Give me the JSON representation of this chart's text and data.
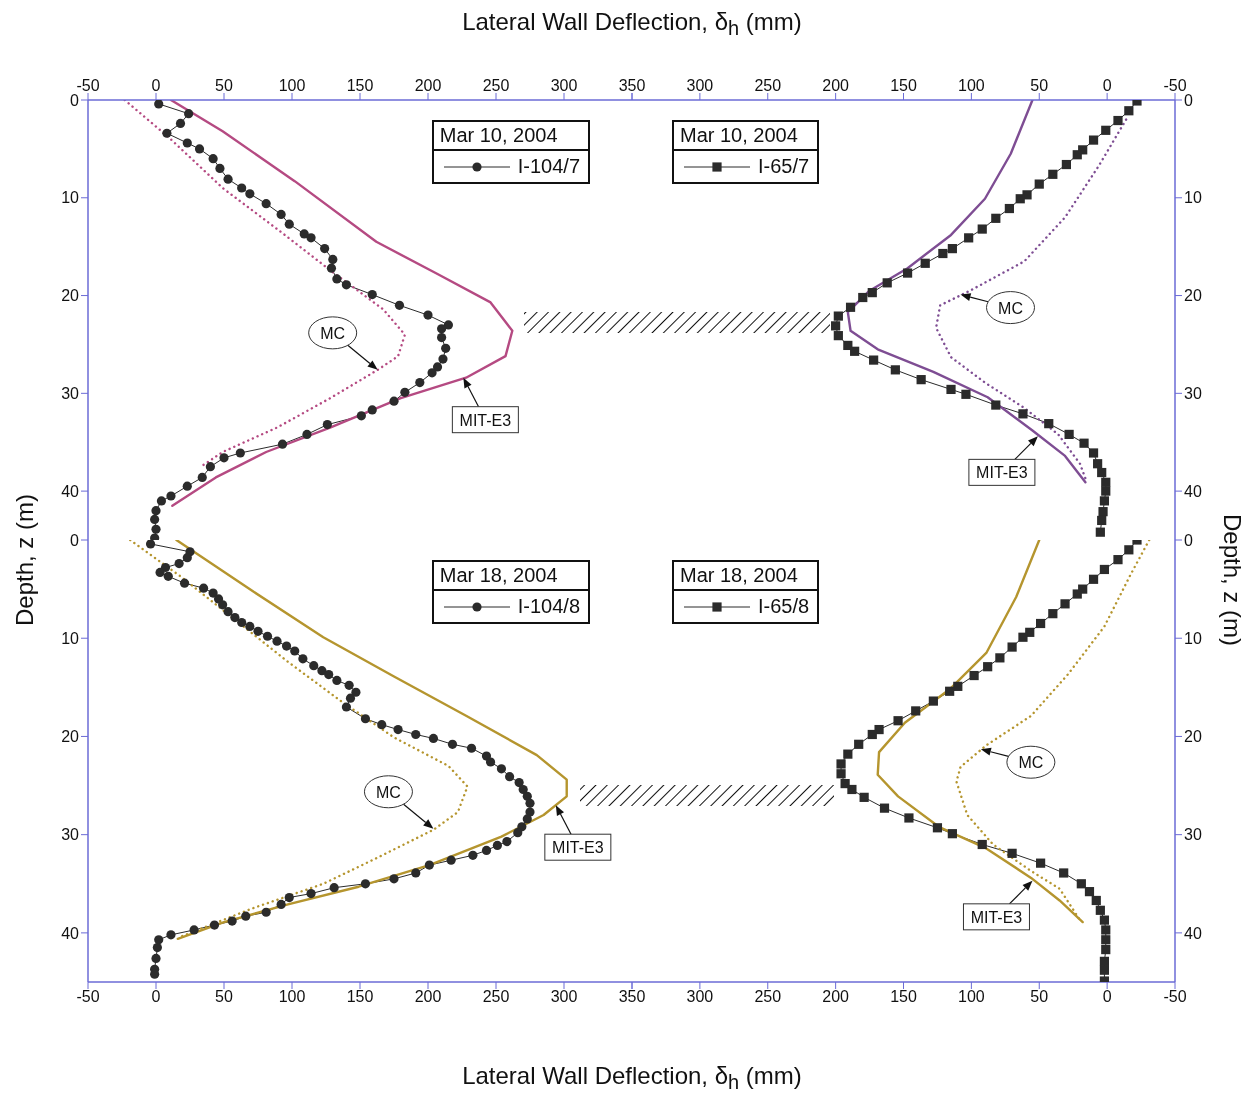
{
  "chart_data": [
    {
      "type": "line",
      "xlabel": "Lateral Wall Deflection, δ$_{h}$ (mm)",
      "ylabel": "Depth, z (m)",
      "legend_title": "Mar 10, 2004",
      "legend": "top right",
      "xlim": [
        -50,
        350
      ],
      "xticks": [
        -50,
        0,
        50,
        100,
        150,
        200,
        250,
        300,
        350
      ],
      "ylim": [
        45,
        0
      ],
      "yticks": [
        0,
        10,
        20,
        30,
        40
      ],
      "series": [
        {
          "name": "I-104/7",
          "color": "#2b2b2b",
          "marker": "circle",
          "line_style": "solid",
          "x": [
            2,
            24,
            18,
            8,
            23,
            32,
            42,
            47,
            53,
            63,
            69,
            81,
            92,
            98,
            109,
            114,
            124,
            130,
            129,
            133,
            140,
            159,
            179,
            200,
            215,
            210,
            210,
            213,
            211,
            207,
            203,
            194,
            183,
            175,
            159,
            151,
            126,
            111,
            93,
            62,
            50,
            40,
            34,
            23,
            11,
            4,
            0,
            -1,
            0,
            -1
          ],
          "values": [
            0.4,
            1.4,
            2.4,
            3.4,
            4.4,
            5,
            6,
            7,
            8.1,
            9,
            9.6,
            10.6,
            11.7,
            12.7,
            13.7,
            14.1,
            15.2,
            16.3,
            17.2,
            18.3,
            18.9,
            19.9,
            21,
            22,
            23,
            23.4,
            24.3,
            25.4,
            26.5,
            27.3,
            27.9,
            28.9,
            29.9,
            30.8,
            31.7,
            32.3,
            33.2,
            34.2,
            35.2,
            36.1,
            36.6,
            37.5,
            38.6,
            39.5,
            40.5,
            41,
            42,
            42.9,
            43.9,
            44.8
          ]
        },
        {
          "color": "#b54a82",
          "marker": "none",
          "line_style": "solid",
          "x": [
            11,
            49,
            102,
            162,
            207,
            246,
            262,
            257,
            228,
            180,
            128,
            81,
            44,
            12
          ],
          "values": [
            0,
            3.2,
            8.3,
            14.5,
            17.8,
            20.7,
            23.6,
            26.2,
            28.4,
            30.5,
            33.5,
            36,
            38.6,
            41.5
          ]
        },
        {
          "color": "#b54a82",
          "marker": "none",
          "line_style": "dotted",
          "x": [
            -23,
            10,
            49,
            91,
            128,
            167,
            183,
            178,
            163,
            128,
            89,
            49,
            33
          ],
          "values": [
            0,
            3.9,
            9,
            13.4,
            17.4,
            21.4,
            24,
            26.2,
            27.6,
            30.5,
            33.5,
            36,
            37.5
          ]
        }
      ],
      "annotations": [
        {
          "text": "MC",
          "x": 163,
          "y": 27.6
        },
        {
          "text": "MIT-E3",
          "x": 226,
          "y": 28.4
        }
      ]
    },
    {
      "type": "line",
      "ylabel": "Depth, z (m)",
      "legend_title": "Mar 10, 2004",
      "legend": "top left",
      "xlim": [
        350,
        -50
      ],
      "xticks": [
        {
          "value": 350,
          "label": null
        },
        300,
        250,
        200,
        150,
        100,
        50,
        0,
        -50
      ],
      "ylim": [
        45,
        0
      ],
      "yticks": [
        0,
        10,
        20,
        30,
        40
      ],
      "series": [
        {
          "name": "I-65/7",
          "color": "#2b2b2b",
          "marker": "square",
          "line_style": "solid",
          "x": [
            -22,
            -16,
            -8,
            1,
            10,
            18,
            22,
            30,
            40,
            50,
            59,
            64,
            72,
            82,
            92,
            102,
            114,
            121,
            134,
            147,
            162,
            173,
            180,
            189,
            198,
            200,
            198,
            191,
            186,
            172,
            156,
            137,
            115,
            104,
            82,
            62,
            43,
            28,
            17,
            10,
            7,
            4,
            1,
            1,
            2,
            3,
            4,
            5
          ],
          "values": [
            0.1,
            1.1,
            2.1,
            3.1,
            4.1,
            5.1,
            5.6,
            6.6,
            7.6,
            8.6,
            9.7,
            10.1,
            11.1,
            12.1,
            13.2,
            14.1,
            15.2,
            15.7,
            16.7,
            17.7,
            18.7,
            19.7,
            20.2,
            21.2,
            22.1,
            23.1,
            24.1,
            25.1,
            25.7,
            26.6,
            27.6,
            28.6,
            29.6,
            30.1,
            31.2,
            32.1,
            33.1,
            34.2,
            35.1,
            36.1,
            37.2,
            38.1,
            39.1,
            40,
            41,
            42.1,
            43,
            44.2
          ]
        },
        {
          "color": "#7e4d93",
          "marker": "none",
          "line_style": "solid",
          "x": [
            55,
            71,
            90,
            115,
            147,
            175,
            191,
            189,
            169,
            128,
            88,
            55,
            31,
            16
          ],
          "values": [
            0,
            5.5,
            10.1,
            13.8,
            17.2,
            19.5,
            21.7,
            23.6,
            25.5,
            27.8,
            30.4,
            33.8,
            36.4,
            39.1
          ]
        },
        {
          "color": "#7e4d93",
          "marker": "none",
          "line_style": "dotted",
          "x": [
            -14,
            6,
            31,
            61,
            101,
            123,
            126,
            115,
            90,
            61,
            36,
            20,
            16
          ],
          "values": [
            2,
            6.7,
            12,
            16.5,
            19.5,
            21,
            23.3,
            26.3,
            28.9,
            31.5,
            34.2,
            37.2,
            38.7
          ]
        }
      ],
      "annotations": [
        {
          "text": "MC",
          "x": 108,
          "y": 19.9
        },
        {
          "text": "MIT-E3",
          "x": 51,
          "y": 34.4
        }
      ]
    },
    {
      "type": "line",
      "xlabel": "Lateral Wall Deflection, δ$_{h}$ (mm)",
      "legend_title": "Mar 18, 2004",
      "legend": "top right",
      "xlim": [
        -50,
        350
      ],
      "xticks": [
        -50,
        0,
        50,
        100,
        150,
        200,
        250,
        300,
        350
      ],
      "ylim": [
        45,
        0
      ],
      "yticks": [
        0,
        10,
        20,
        30,
        40
      ],
      "series": [
        {
          "name": "I-104/8",
          "color": "#2b2b2b",
          "marker": "circle",
          "line_style": "solid",
          "x": [
            -4,
            25,
            23,
            17,
            7,
            3,
            9,
            21,
            35,
            42,
            46,
            49,
            53,
            58,
            63,
            69,
            75,
            82,
            89,
            96,
            102,
            108,
            116,
            122,
            127,
            133,
            142,
            147,
            143,
            140,
            154,
            166,
            178,
            191,
            204,
            218,
            232,
            243,
            246,
            254,
            260,
            267,
            270,
            273,
            275,
            275,
            273,
            269,
            266,
            258,
            251,
            243,
            233,
            217,
            201,
            191,
            175,
            154,
            131,
            114,
            98,
            92,
            81,
            66,
            56,
            43,
            28,
            11,
            2,
            1,
            0,
            -1,
            -1
          ],
          "values": [
            0.4,
            1.2,
            1.8,
            2.4,
            2.8,
            3.3,
            3.7,
            4.4,
            4.9,
            5.4,
            6,
            6.6,
            7.3,
            7.9,
            8.4,
            8.8,
            9.3,
            9.8,
            10.3,
            10.8,
            11.3,
            12.1,
            12.8,
            13.3,
            13.7,
            14.3,
            14.8,
            15.5,
            16.1,
            17,
            18.2,
            18.8,
            19.3,
            19.8,
            20.2,
            20.8,
            21.2,
            22,
            22.6,
            23.3,
            24.1,
            24.7,
            25.4,
            26.1,
            26.8,
            27.7,
            28.4,
            29.2,
            29.8,
            30.7,
            31.1,
            31.6,
            32.1,
            32.6,
            33.1,
            33.9,
            34.5,
            35,
            35.4,
            36,
            36.4,
            37.1,
            37.9,
            38.3,
            38.8,
            39.2,
            39.7,
            40.2,
            40.7,
            41.5,
            42.6,
            43.7,
            44.2
          ]
        },
        {
          "color": "#b5952e",
          "marker": "none",
          "line_style": "solid",
          "x": [
            15,
            71,
            123,
            175,
            228,
            280,
            302,
            302,
            285,
            254,
            201,
            149,
            97,
            50,
            16
          ],
          "values": [
            0,
            5.2,
            9.9,
            13.9,
            17.9,
            21.9,
            24.4,
            26.1,
            28,
            30.2,
            33.1,
            35.3,
            37.1,
            38.9,
            40.6
          ]
        },
        {
          "color": "#b5952e",
          "marker": "none",
          "line_style": "dotted",
          "x": [
            -19,
            18,
            58,
            97,
            136,
            175,
            215,
            229,
            222,
            204,
            162,
            123,
            71,
            18
          ],
          "values": [
            0,
            3.7,
            8.1,
            12.4,
            16.4,
            20.1,
            23,
            25.1,
            27.7,
            29.5,
            32.4,
            35,
            37.5,
            40.4
          ]
        }
      ],
      "annotations": [
        {
          "text": "MC",
          "x": 204,
          "y": 29.4
        },
        {
          "text": "MIT-E3",
          "x": 294,
          "y": 27
        }
      ]
    },
    {
      "type": "line",
      "legend_title": "Mar 18, 2004",
      "legend": "top left",
      "xlim": [
        350,
        -50
      ],
      "xticks": [
        {
          "value": 350,
          "label": null
        },
        300,
        250,
        200,
        150,
        100,
        50,
        0,
        -50
      ],
      "ylim": [
        45,
        0
      ],
      "yticks": [
        0,
        10,
        20,
        30,
        40
      ],
      "series": [
        {
          "name": "I-65/8",
          "color": "#2b2b2b",
          "marker": "square",
          "line_style": "solid",
          "x": [
            -22,
            -16,
            -8,
            2,
            10,
            18,
            22,
            31,
            40,
            49,
            57,
            62,
            70,
            79,
            88,
            98,
            110,
            116,
            128,
            141,
            154,
            168,
            173,
            183,
            191,
            196,
            196,
            193,
            188,
            179,
            164,
            146,
            125,
            114,
            92,
            70,
            49,
            32,
            19,
            13,
            8,
            5,
            2,
            1,
            1,
            1,
            2,
            2,
            2
          ],
          "values": [
            0,
            1,
            2,
            3,
            4,
            5,
            5.5,
            6.5,
            7.5,
            8.5,
            9.4,
            9.9,
            10.9,
            12,
            12.9,
            13.8,
            14.9,
            15.4,
            16.4,
            17.4,
            18.4,
            19.3,
            19.8,
            20.8,
            21.8,
            22.8,
            23.8,
            24.8,
            25.4,
            26.2,
            27.3,
            28.3,
            29.3,
            29.9,
            31,
            31.9,
            32.9,
            33.9,
            35,
            35.8,
            36.7,
            37.7,
            38.7,
            39.7,
            40.7,
            41.7,
            42.9,
            43.8,
            44.9
          ]
        },
        {
          "color": "#b5952e",
          "marker": "none",
          "line_style": "solid",
          "x": [
            50,
            67,
            89,
            116,
            149,
            168,
            169,
            154,
            124,
            89,
            56,
            35,
            18
          ],
          "values": [
            0,
            5.8,
            11.5,
            15.2,
            18.6,
            21.6,
            23.9,
            26.1,
            29.2,
            31.4,
            34.4,
            36.7,
            38.9
          ]
        },
        {
          "color": "#b5952e",
          "marker": "none",
          "line_style": "dotted",
          "x": [
            -31,
            -17,
            2,
            29,
            56,
            89,
            108,
            111,
            103,
            84,
            56,
            35,
            20
          ],
          "values": [
            0,
            3.6,
            8.8,
            13.7,
            17.9,
            20.9,
            23.1,
            24.6,
            28,
            31,
            33.7,
            35.5,
            38.7
          ]
        }
      ],
      "annotations": [
        {
          "text": "MC",
          "x": 93,
          "y": 21.3
        },
        {
          "text": "MIT-E3",
          "x": 55,
          "y": 34.7
        }
      ]
    }
  ]
}
